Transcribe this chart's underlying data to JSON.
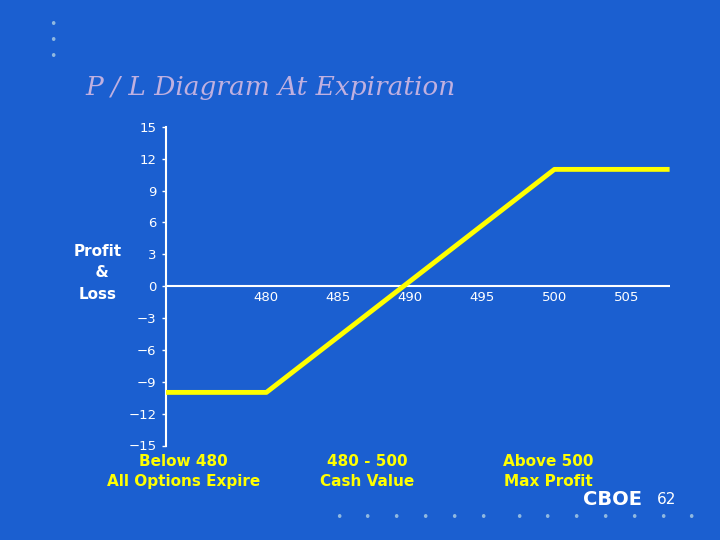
{
  "title": "P / L Diagram At Expiration",
  "title_bg": "#3300AA",
  "title_color": "#C0B0E0",
  "bg_color": "#1B5FD0",
  "line_color": "#FFFF00",
  "line_width": 3.5,
  "axis_color": "#FFFFFF",
  "ytick_labels": [
    "-15",
    "-12",
    "-9",
    "-6",
    "-3",
    "0",
    "3",
    "6",
    "9",
    "12",
    "15"
  ],
  "yticks": [
    -15,
    -12,
    -9,
    -6,
    -3,
    0,
    3,
    6,
    9,
    12,
    15
  ],
  "xticks": [
    480,
    485,
    490,
    495,
    500,
    505
  ],
  "xlim": [
    473,
    508
  ],
  "ylim": [
    -15,
    15
  ],
  "line_x": [
    469,
    480,
    500,
    508
  ],
  "line_y": [
    -10,
    -10,
    11,
    11
  ],
  "label1_line1": "Below 480",
  "label1_line2": "All Options Expire",
  "label2_line1": "480 - 500",
  "label2_line2": "Cash Value",
  "label3_line1": "Above 500",
  "label3_line2": "Max Profit",
  "label_color": "#FFFF00",
  "cboe_color": "#FFFFFF",
  "cboe_text": "CBOE",
  "page_num": "62",
  "dot_color": "#90B8E0",
  "ylabel_line1": "Profit",
  "ylabel_line2": "  &",
  "ylabel_line3": "Loss"
}
